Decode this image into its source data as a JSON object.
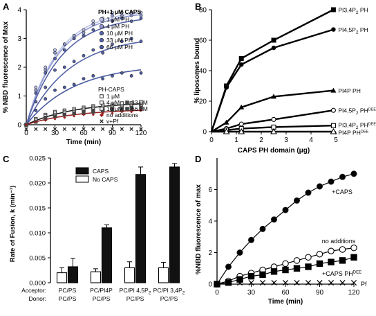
{
  "panels": {
    "A": {
      "letter": "A"
    },
    "B": {
      "letter": "B"
    },
    "C": {
      "letter": "C"
    },
    "D": {
      "letter": "D"
    }
  },
  "chart_data": [
    {
      "panel": "A",
      "type": "scatter",
      "xlabel": "Time (min)",
      "ylabel": "% NBD fluorescence of Max",
      "xlim": [
        0,
        120
      ],
      "ylim": [
        0,
        4
      ],
      "xticks": [
        0,
        30,
        60,
        90,
        120
      ],
      "yticks": [
        0,
        1,
        2,
        3,
        4
      ],
      "legend_title_top": "PH+1 μM CAPS",
      "legend_title_bottom": "PH-CAPS",
      "colors": {
        "dark": "#1a1a1a",
        "navy": "#2e3b78",
        "blue": "#5563a8",
        "light": "#b9c0e6",
        "red": "#9b2222"
      },
      "fit_curves": [
        {
          "name": "1 μM PH",
          "plateau": 4.0,
          "k": 0.03,
          "color": "#b9c0e6"
        },
        {
          "name": "4 μM PH",
          "plateau": 3.95,
          "k": 0.029,
          "color": "#8f99cf"
        },
        {
          "name": "10 μM PH",
          "plateau": 3.8,
          "k": 0.027,
          "color": "#5563a8"
        },
        {
          "name": "33 μM PH",
          "plateau": 3.1,
          "k": 0.022,
          "color": "#5563a8"
        },
        {
          "name": "66 μM PH",
          "plateau": 2.1,
          "k": 0.02,
          "color": "#4a5aa0"
        },
        {
          "name": "PH-CAPS",
          "plateau": 0.8,
          "k": 0.02,
          "color": "#1a1a1a"
        },
        {
          "name": "no additions",
          "plateau": 0.55,
          "k": 0.02,
          "color": "#9b2222"
        }
      ],
      "series": [
        {
          "name": "1 μM PH",
          "x": [
            0,
            10,
            20,
            30,
            40,
            50,
            60,
            70,
            80,
            90,
            100,
            110,
            120
          ],
          "y": [
            0,
            1.3,
            2.0,
            2.6,
            2.8,
            3.0,
            3.3,
            3.6,
            3.7,
            3.9,
            3.9,
            3.9,
            3.9
          ]
        },
        {
          "name": "4 μM PH",
          "x": [
            0,
            10,
            20,
            30,
            40,
            50,
            60,
            70,
            80,
            90,
            100,
            110,
            120
          ],
          "y": [
            0,
            1.2,
            1.9,
            2.5,
            2.8,
            3.1,
            3.2,
            3.5,
            3.6,
            3.8,
            3.8,
            3.8,
            3.8
          ]
        },
        {
          "name": "10 μM PH",
          "x": [
            0,
            10,
            20,
            30,
            40,
            50,
            60,
            70,
            80,
            90,
            100,
            110,
            120
          ],
          "y": [
            0,
            1.1,
            1.8,
            2.3,
            2.6,
            3.0,
            3.1,
            3.3,
            3.4,
            3.6,
            3.7,
            3.6,
            3.7
          ]
        },
        {
          "name": "33 μM PH",
          "x": [
            0,
            10,
            20,
            30,
            40,
            50,
            60,
            70,
            80,
            90,
            100,
            110,
            120
          ],
          "y": [
            0,
            0.8,
            1.3,
            1.9,
            2.0,
            2.2,
            2.4,
            2.6,
            2.5,
            2.8,
            2.9,
            3.0,
            2.9
          ]
        },
        {
          "name": "66 μM PH",
          "x": [
            0,
            10,
            20,
            30,
            40,
            50,
            60,
            70,
            80,
            90,
            100,
            110,
            120
          ],
          "y": [
            0,
            0.5,
            0.9,
            1.2,
            1.3,
            1.4,
            1.6,
            1.7,
            1.6,
            1.7,
            1.8,
            1.7,
            1.8
          ]
        },
        {
          "name": "1 μM",
          "x": [
            0,
            10,
            20,
            30,
            40,
            50,
            60,
            70,
            80,
            90,
            100,
            110,
            120
          ],
          "y": [
            0,
            0.2,
            0.35,
            0.45,
            0.5,
            0.55,
            0.6,
            0.65,
            0.7,
            0.7,
            0.75,
            0.75,
            0.8
          ]
        },
        {
          "name": "4 μM",
          "x": [
            0,
            10,
            20,
            30,
            40,
            50,
            60,
            70,
            80,
            90,
            100,
            110,
            120
          ],
          "y": [
            0,
            0.15,
            0.3,
            0.4,
            0.45,
            0.5,
            0.55,
            0.6,
            0.6,
            0.65,
            0.65,
            0.7,
            0.7
          ]
        },
        {
          "name": "10 μM",
          "x": [
            0,
            10,
            20,
            30,
            40,
            50,
            60,
            70,
            80,
            90,
            100,
            110,
            120
          ],
          "y": [
            0,
            0.15,
            0.25,
            0.35,
            0.4,
            0.45,
            0.5,
            0.55,
            0.55,
            0.6,
            0.6,
            0.65,
            0.65
          ]
        },
        {
          "name": "33 μM",
          "x": [
            0,
            10,
            20,
            30,
            40,
            50,
            60,
            70,
            80,
            90,
            100,
            110,
            120
          ],
          "y": [
            0,
            0.1,
            0.25,
            0.3,
            0.35,
            0.4,
            0.45,
            0.5,
            0.5,
            0.55,
            0.55,
            0.6,
            0.6
          ]
        },
        {
          "name": "66 μM",
          "x": [
            0,
            10,
            20,
            30,
            40,
            50,
            60,
            70,
            80,
            90,
            100,
            110,
            120
          ],
          "y": [
            0,
            0.1,
            0.2,
            0.3,
            0.35,
            0.4,
            0.4,
            0.45,
            0.5,
            0.5,
            0.5,
            0.55,
            0.55
          ]
        },
        {
          "name": "no additions",
          "x": [
            0,
            10,
            20,
            30,
            40,
            50,
            60,
            70,
            80,
            90,
            100,
            110,
            120
          ],
          "y": [
            0,
            0.1,
            0.15,
            0.2,
            0.25,
            0.3,
            0.35,
            0.35,
            0.4,
            0.4,
            0.45,
            0.45,
            0.5
          ]
        },
        {
          "name": "v+Pf",
          "x": [
            0,
            10,
            20,
            30,
            40,
            50,
            60,
            70,
            80,
            90,
            100,
            110,
            120
          ],
          "y": [
            -0.15,
            -0.15,
            -0.15,
            -0.15,
            -0.15,
            -0.15,
            -0.15,
            -0.15,
            -0.15,
            -0.15,
            -0.15,
            -0.15,
            -0.15
          ]
        }
      ],
      "legend": [
        {
          "label": "1 μM PH",
          "marker": "circle",
          "color": "#b9c0e6"
        },
        {
          "label": "4 μM PH",
          "marker": "circle",
          "color": "#8f99cf"
        },
        {
          "label": "10 μM PH",
          "marker": "circle",
          "color": "#5563a8"
        },
        {
          "label": "33 μM PH",
          "marker": "circle",
          "color": "#5563a8"
        },
        {
          "label": "66 μM PH",
          "marker": "circle",
          "color": "#4a5aa0"
        },
        {
          "label": "1 μM",
          "marker": "square-open",
          "color": "#1a1a1a"
        },
        {
          "label": "4 μM",
          "marker": "square-open",
          "color": "#1a1a1a"
        },
        {
          "label": "33 μM",
          "marker": "square-filled",
          "color": "#1a1a1a"
        },
        {
          "label": "10 μM",
          "marker": "square-open",
          "color": "#1a1a1a"
        },
        {
          "label": "66 μM",
          "marker": "square-filled",
          "color": "#1a1a1a"
        },
        {
          "label": "no additions",
          "marker": "diamond",
          "color": "#9b2222"
        },
        {
          "label": "v+Pf",
          "marker": "x",
          "color": "#1a1a1a"
        }
      ]
    },
    {
      "panel": "B",
      "type": "line",
      "xlabel": "CAPS PH domain (μg)",
      "ylabel": "% liposomes bound",
      "xlim": [
        0,
        5
      ],
      "ylim": [
        0,
        80
      ],
      "xticks": [
        0,
        1,
        2,
        3,
        4,
        5
      ],
      "yticks": [
        0,
        20,
        40,
        60,
        80
      ],
      "series": [
        {
          "name": "PI3,4P2 PH",
          "label_main": "PI3,4P",
          "label_sub": "2",
          "label_rest": " PH",
          "label_sup": "",
          "marker": "square-filled",
          "x": [
            0,
            0.6,
            1.2,
            2.5,
            4.9
          ],
          "y": [
            0,
            30,
            48,
            60,
            80
          ]
        },
        {
          "name": "PI4,5P2 PH",
          "label_main": "PI4,5P",
          "label_sub": "2",
          "label_rest": " PH",
          "label_sup": "",
          "marker": "circle-filled",
          "x": [
            0,
            0.6,
            1.2,
            2.5,
            4.9
          ],
          "y": [
            0,
            29,
            44,
            55,
            67
          ]
        },
        {
          "name": "PI4P PH",
          "label_main": "PI4P PH",
          "label_sub": "",
          "label_rest": "",
          "label_sup": "",
          "marker": "triangle-filled",
          "x": [
            0,
            0.6,
            1.2,
            2.5,
            4.9
          ],
          "y": [
            0,
            6,
            16,
            23,
            27
          ]
        },
        {
          "name": "PI4,5P2 PHDEE",
          "label_main": "PI4,5P",
          "label_sub": "2",
          "label_rest": " PH",
          "label_sup": "DEE",
          "marker": "circle-open",
          "x": [
            0,
            0.6,
            1.2,
            2.5,
            4.9
          ],
          "y": [
            0,
            2,
            5,
            8,
            14
          ]
        },
        {
          "name": "PI3,4P2 PHDEE",
          "label_main": "PI3,4P",
          "label_sub": "2",
          "label_rest": " PH",
          "label_sup": "DEE",
          "marker": "square-open",
          "x": [
            0,
            0.6,
            1.2,
            2.5,
            4.9
          ],
          "y": [
            0,
            1,
            2,
            3,
            4
          ]
        },
        {
          "name": "PI4P PHDEE",
          "label_main": "PI4P PH",
          "label_sub": "",
          "label_rest": "",
          "label_sup": "DEE",
          "marker": "triangle-open",
          "x": [
            0,
            0.6,
            1.2,
            2.5,
            4.9
          ],
          "y": [
            0,
            0,
            0,
            0,
            0
          ]
        }
      ]
    },
    {
      "panel": "C",
      "type": "bar",
      "ylabel": "Rate of Fusion, k (min⁻¹)",
      "ylim": [
        0,
        0.025
      ],
      "yticks": [
        "0.000",
        "0.005",
        "0.010",
        "0.015",
        "0.020",
        "0.025"
      ],
      "ytick_values": [
        0,
        0.005,
        0.01,
        0.015,
        0.02,
        0.025
      ],
      "row_labels": {
        "acceptor": "Acceptor:",
        "donor": "Donor:"
      },
      "groups": [
        {
          "acceptor": "PC/PS",
          "acceptor_sub": "",
          "acceptor_end": "",
          "donor": "PC/PS"
        },
        {
          "acceptor": "PC/PI4P",
          "acceptor_sub": "",
          "acceptor_end": "",
          "donor": "PC/PS"
        },
        {
          "acceptor": "PC/PI 4,5P",
          "acceptor_sub": "2",
          "acceptor_end": "",
          "donor": "PC/PS"
        },
        {
          "acceptor": "PC/PI 3,4P",
          "acceptor_sub": "2",
          "acceptor_end": "",
          "donor": "PC/PS"
        }
      ],
      "series": [
        {
          "name": "No CAPS",
          "values": [
            0.002,
            0.0022,
            0.003,
            0.003
          ],
          "errors": [
            0.001,
            0.0006,
            0.0012,
            0.0011
          ]
        },
        {
          "name": "CAPS",
          "values": [
            0.0032,
            0.011,
            0.0217,
            0.0232
          ],
          "errors": [
            0.0017,
            0.0006,
            0.0015,
            0.0007
          ]
        }
      ],
      "legend": [
        {
          "label": "CAPS",
          "fill": "filled"
        },
        {
          "label": "No CAPS",
          "fill": "open"
        }
      ]
    },
    {
      "panel": "D",
      "type": "scatter",
      "xlabel": "Time (min)",
      "ylabel": "%NBD fluorescence of max",
      "xlim": [
        0,
        120
      ],
      "ylim": [
        0,
        8
      ],
      "xticks": [
        0,
        30,
        60,
        90,
        120
      ],
      "yticks": [
        0,
        2,
        4,
        6
      ],
      "series": [
        {
          "name": "+CAPS",
          "label_main": "+CAPS",
          "label_sup": "",
          "marker": "circle-filled",
          "x": [
            0,
            10,
            20,
            30,
            40,
            50,
            60,
            70,
            80,
            90,
            100,
            110,
            120
          ],
          "y": [
            0,
            1.1,
            2.0,
            2.8,
            3.5,
            4.1,
            4.7,
            5.3,
            5.8,
            6.2,
            6.5,
            6.8,
            7.0
          ]
        },
        {
          "name": "no additions",
          "label_main": "no additions",
          "label_sup": "",
          "marker": "circle-open",
          "x": [
            0,
            10,
            20,
            30,
            40,
            50,
            60,
            70,
            80,
            90,
            100,
            110,
            120
          ],
          "y": [
            0,
            0.2,
            0.5,
            0.7,
            0.9,
            1.1,
            1.3,
            1.5,
            1.7,
            1.9,
            2.1,
            2.2,
            2.3
          ]
        },
        {
          "name": "+CAPS PHDEE",
          "label_main": "+CAPS PH",
          "label_sup": "DEE",
          "marker": "square-filled",
          "x": [
            0,
            10,
            20,
            30,
            40,
            50,
            60,
            70,
            80,
            90,
            100,
            110,
            120
          ],
          "y": [
            0,
            0.1,
            0.3,
            0.5,
            0.6,
            0.8,
            0.9,
            1.0,
            1.1,
            1.3,
            1.4,
            1.5,
            1.7
          ]
        },
        {
          "name": "Pf",
          "label_main": "Pf",
          "label_sup": "",
          "marker": "x",
          "x": [
            0,
            10,
            20,
            30,
            40,
            50,
            60,
            70,
            80,
            90,
            100,
            110,
            120
          ],
          "y": [
            0,
            0,
            0,
            0,
            0,
            0,
            0,
            0,
            0,
            0,
            0,
            0,
            0
          ]
        }
      ]
    }
  ]
}
